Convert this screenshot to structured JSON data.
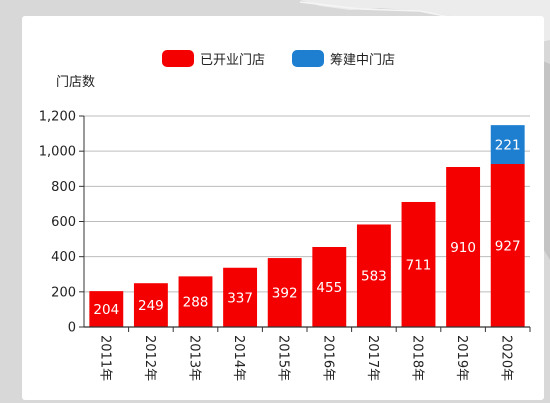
{
  "chart_data": {
    "type": "bar",
    "stacked": true,
    "title": "",
    "ylabel": "门店数",
    "xlabel": "",
    "categories": [
      "2011年",
      "2012年",
      "2013年",
      "2014年",
      "2015年",
      "2016年",
      "2017年",
      "2018年",
      "2019年",
      "2020年"
    ],
    "series": [
      {
        "name": "已开业门店",
        "color": "#f50000",
        "values": [
          204,
          249,
          288,
          337,
          392,
          455,
          583,
          711,
          910,
          927
        ]
      },
      {
        "name": "筹建中门店",
        "color": "#1e7fd0",
        "values": [
          null,
          null,
          null,
          null,
          null,
          null,
          null,
          null,
          null,
          221
        ]
      }
    ],
    "ylim": [
      0,
      1200
    ],
    "yticks": [
      0,
      200,
      400,
      600,
      800,
      1000,
      1200
    ],
    "ytick_labels": [
      "0",
      "200",
      "400",
      "600",
      "800",
      "1,000",
      "1,200"
    ],
    "grid": true,
    "legend": "top"
  }
}
